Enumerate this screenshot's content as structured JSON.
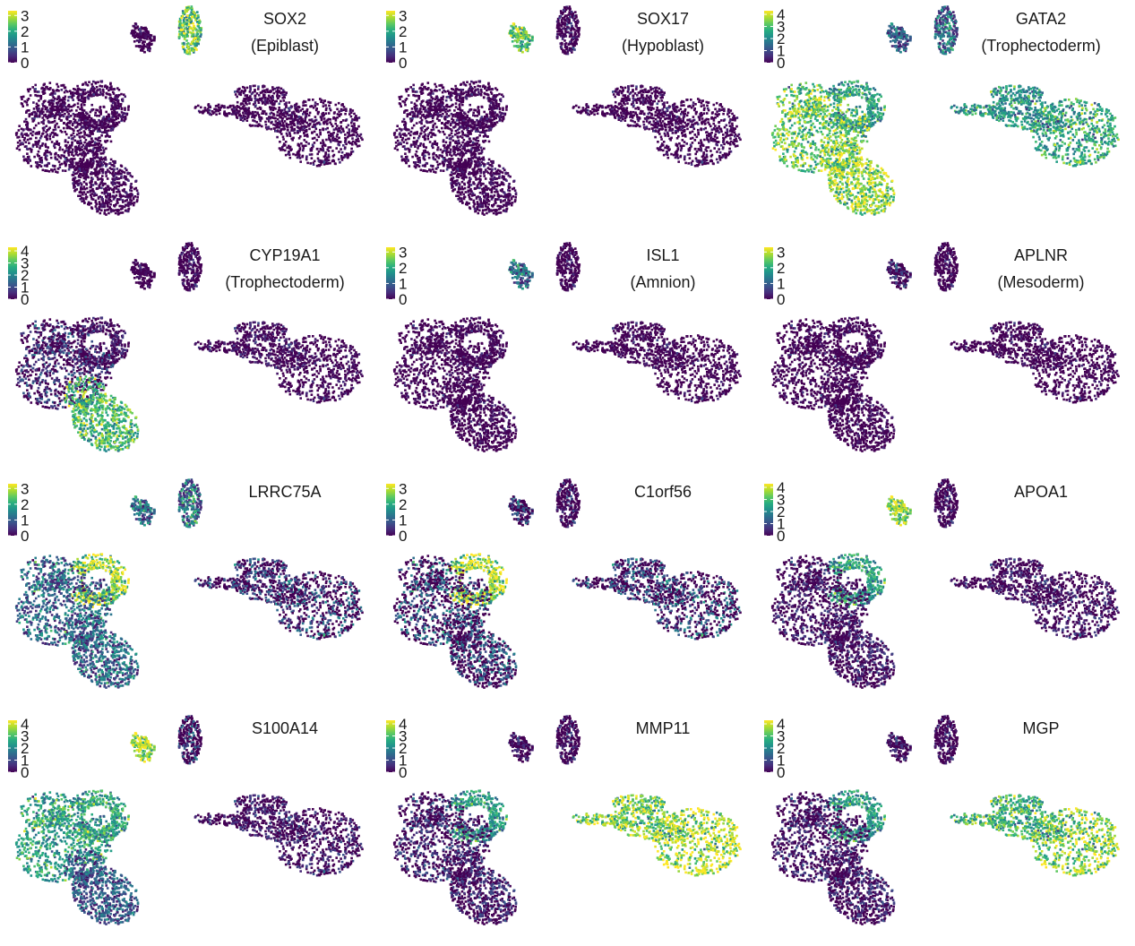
{
  "chart_data": [
    {
      "type": "scatter",
      "gene": "SOX2",
      "annotation": "(Epiblast)",
      "legend_ticks": [
        0,
        1,
        2,
        3
      ],
      "scale_max": 3.3,
      "expression": {
        "upper_right": 2.4,
        "upper_left": 0.1,
        "left_ring": 0.05,
        "left_body": 0.05,
        "left_bottom": 0.05,
        "right_blob": 0.05,
        "right_core": 0.05
      }
    },
    {
      "type": "scatter",
      "gene": "SOX17",
      "annotation": "(Hypoblast)",
      "legend_ticks": [
        0,
        1,
        2,
        3
      ],
      "scale_max": 3.3,
      "expression": {
        "upper_right": 0.2,
        "upper_left": 2.4,
        "left_ring": 0.05,
        "left_body": 0.05,
        "left_bottom": 0.05,
        "right_blob": 0.05,
        "right_core": 0.05
      }
    },
    {
      "type": "scatter",
      "gene": "GATA2",
      "annotation": "(Trophectoderm)",
      "legend_ticks": [
        0,
        1,
        2,
        3,
        4
      ],
      "scale_max": 4.3,
      "expression": {
        "upper_right": 1.8,
        "upper_left": 1.5,
        "left_ring": 2.4,
        "left_body": 3.2,
        "left_bottom": 3.6,
        "right_blob": 2.2,
        "right_core": 2.6
      }
    },
    {
      "type": "scatter",
      "gene": "CYP19A1",
      "annotation": "(Trophectoderm)",
      "legend_ticks": [
        0,
        1,
        2,
        3,
        4
      ],
      "scale_max": 4.3,
      "expression": {
        "upper_right": 0.2,
        "upper_left": 0.1,
        "left_ring": 0.4,
        "left_body": 0.9,
        "left_bottom": 2.9,
        "right_blob": 0.3,
        "right_core": 0.2
      }
    },
    {
      "type": "scatter",
      "gene": "ISL1",
      "annotation": "(Amnion)",
      "legend_ticks": [
        0,
        1,
        2,
        3
      ],
      "scale_max": 3.3,
      "expression": {
        "upper_right": 0.05,
        "upper_left": 1.4,
        "left_ring": 0.05,
        "left_body": 0.05,
        "left_bottom": 0.05,
        "right_blob": 0.05,
        "right_core": 0.05
      }
    },
    {
      "type": "scatter",
      "gene": "APLNR",
      "annotation": "(Mesoderm)",
      "legend_ticks": [
        0,
        1,
        2,
        3
      ],
      "scale_max": 3.3,
      "expression": {
        "upper_right": 0.05,
        "upper_left": 0.6,
        "left_ring": 0.05,
        "left_body": 0.05,
        "left_bottom": 0.05,
        "right_blob": 0.05,
        "right_core": 0.05
      }
    },
    {
      "type": "scatter",
      "gene": "LRRC75A",
      "annotation": "",
      "legend_ticks": [
        0,
        1,
        2,
        3
      ],
      "scale_max": 3.3,
      "expression": {
        "upper_right": 1.5,
        "upper_left": 1.4,
        "left_ring": 2.8,
        "left_body": 1.3,
        "left_bottom": 1.3,
        "right_blob": 0.8,
        "right_core": 1.0
      }
    },
    {
      "type": "scatter",
      "gene": "C1orf56",
      "annotation": "",
      "legend_ticks": [
        0,
        1,
        2,
        3
      ],
      "scale_max": 3.3,
      "expression": {
        "upper_right": 0.3,
        "upper_left": 0.9,
        "left_ring": 2.9,
        "left_body": 1.1,
        "left_bottom": 1.0,
        "right_blob": 0.9,
        "right_core": 1.1
      }
    },
    {
      "type": "scatter",
      "gene": "APOA1",
      "annotation": "",
      "legend_ticks": [
        0,
        1,
        2,
        3,
        4
      ],
      "scale_max": 4.3,
      "expression": {
        "upper_right": 0.3,
        "upper_left": 3.6,
        "left_ring": 2.4,
        "left_body": 0.5,
        "left_bottom": 0.5,
        "right_blob": 0.4,
        "right_core": 0.5
      }
    },
    {
      "type": "scatter",
      "gene": "S100A14",
      "annotation": "",
      "legend_ticks": [
        0,
        1,
        2,
        3,
        4
      ],
      "scale_max": 4.3,
      "expression": {
        "upper_right": 1.0,
        "upper_left": 3.8,
        "left_ring": 2.5,
        "left_body": 2.4,
        "left_bottom": 1.4,
        "right_blob": 0.5,
        "right_core": 0.6
      }
    },
    {
      "type": "scatter",
      "gene": "MMP11",
      "annotation": "",
      "legend_ticks": [
        0,
        1,
        2,
        3,
        4
      ],
      "scale_max": 4.3,
      "expression": {
        "upper_right": 0.4,
        "upper_left": 0.5,
        "left_ring": 2.3,
        "left_body": 0.8,
        "left_bottom": 0.7,
        "right_blob": 3.4,
        "right_core": 3.9
      }
    },
    {
      "type": "scatter",
      "gene": "MGP",
      "annotation": "",
      "legend_ticks": [
        0,
        1,
        2,
        3,
        4
      ],
      "scale_max": 4.3,
      "expression": {
        "upper_right": 0.3,
        "upper_left": 0.6,
        "left_ring": 2.3,
        "left_body": 0.6,
        "left_bottom": 0.6,
        "right_blob": 2.8,
        "right_core": 3.5
      }
    }
  ]
}
